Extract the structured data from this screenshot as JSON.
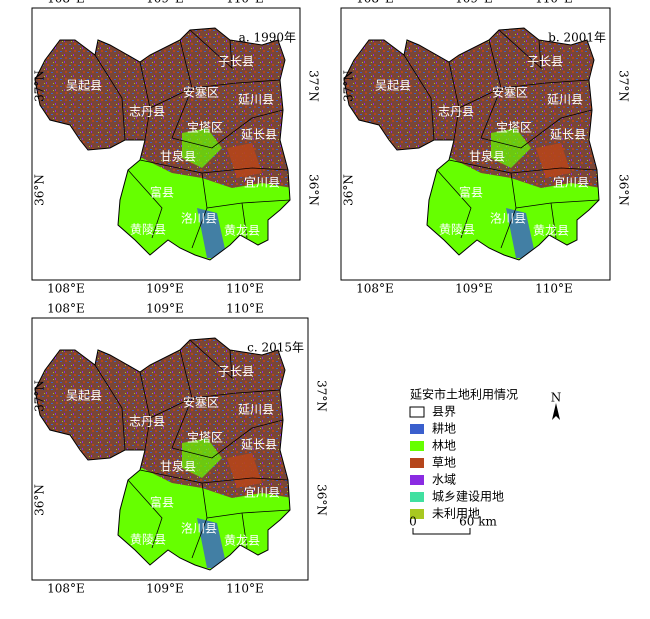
{
  "panels": [
    {
      "title": "a. 1990年"
    },
    {
      "title": "b. 2001年"
    },
    {
      "title": "c. 2015年"
    }
  ],
  "lon_labels": [
    "108°E",
    "109°E",
    "110°E"
  ],
  "lat_labels": [
    "37°N",
    "36°N"
  ],
  "counties": [
    "吴起县",
    "志丹县",
    "安塞区",
    "子长县",
    "延川县",
    "宝塔区",
    "延长县",
    "甘泉县",
    "宜川县",
    "富县",
    "洛川县",
    "黄陵县",
    "黄龙县"
  ],
  "legend": {
    "title": "延安市土地利用情况",
    "items": [
      {
        "label": "县界",
        "color": "#ffffff"
      },
      {
        "label": "耕地",
        "color": "#3a5fcd"
      },
      {
        "label": "林地",
        "color": "#66ff00"
      },
      {
        "label": "草地",
        "color": "#b5451b"
      },
      {
        "label": "水域",
        "color": "#8a2be2"
      },
      {
        "label": "城乡建设用地",
        "color": "#40e0a0"
      },
      {
        "label": "未利用地",
        "color": "#a8c820"
      }
    ]
  },
  "scale_bar": {
    "start": "0",
    "end": "60 km"
  },
  "north_arrow": "N"
}
